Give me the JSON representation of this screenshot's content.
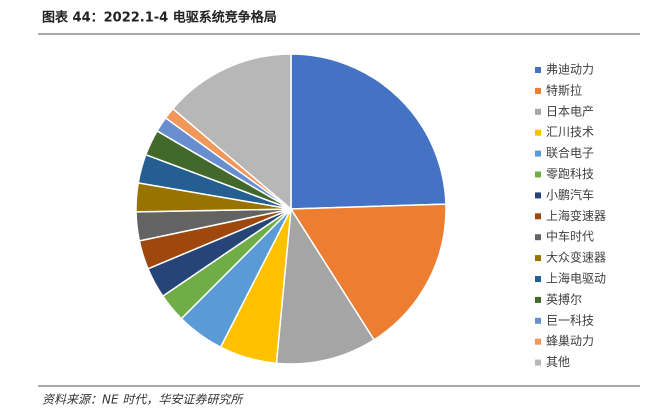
{
  "chart_data": {
    "type": "pie",
    "title": "图表 44：2022.1-4 电驱系统竞争格局",
    "source": "资料来源：NE 时代，华安证券研究所",
    "categories": [
      "弗迪动力",
      "特斯拉",
      "日本电产",
      "汇川技术",
      "联合电子",
      "零跑科技",
      "小鹏汽车",
      "上海变速器",
      "中车时代",
      "大众变速器",
      "上海电驱动",
      "英搏尔",
      "巨一科技",
      "蜂巢动力",
      "其他"
    ],
    "values": [
      24.5,
      16.5,
      10.5,
      6,
      5,
      3,
      3.2,
      3,
      3,
      3,
      3,
      2.7,
      1.6,
      1.2,
      13.8
    ],
    "colors": [
      "#4472c4",
      "#ed7d31",
      "#a5a5a5",
      "#ffc000",
      "#5b9bd5",
      "#70ad47",
      "#264478",
      "#9e480e",
      "#636363",
      "#997300",
      "#255e91",
      "#43682b",
      "#698ed0",
      "#f1975a",
      "#b7b7b7"
    ],
    "legend": "right"
  }
}
